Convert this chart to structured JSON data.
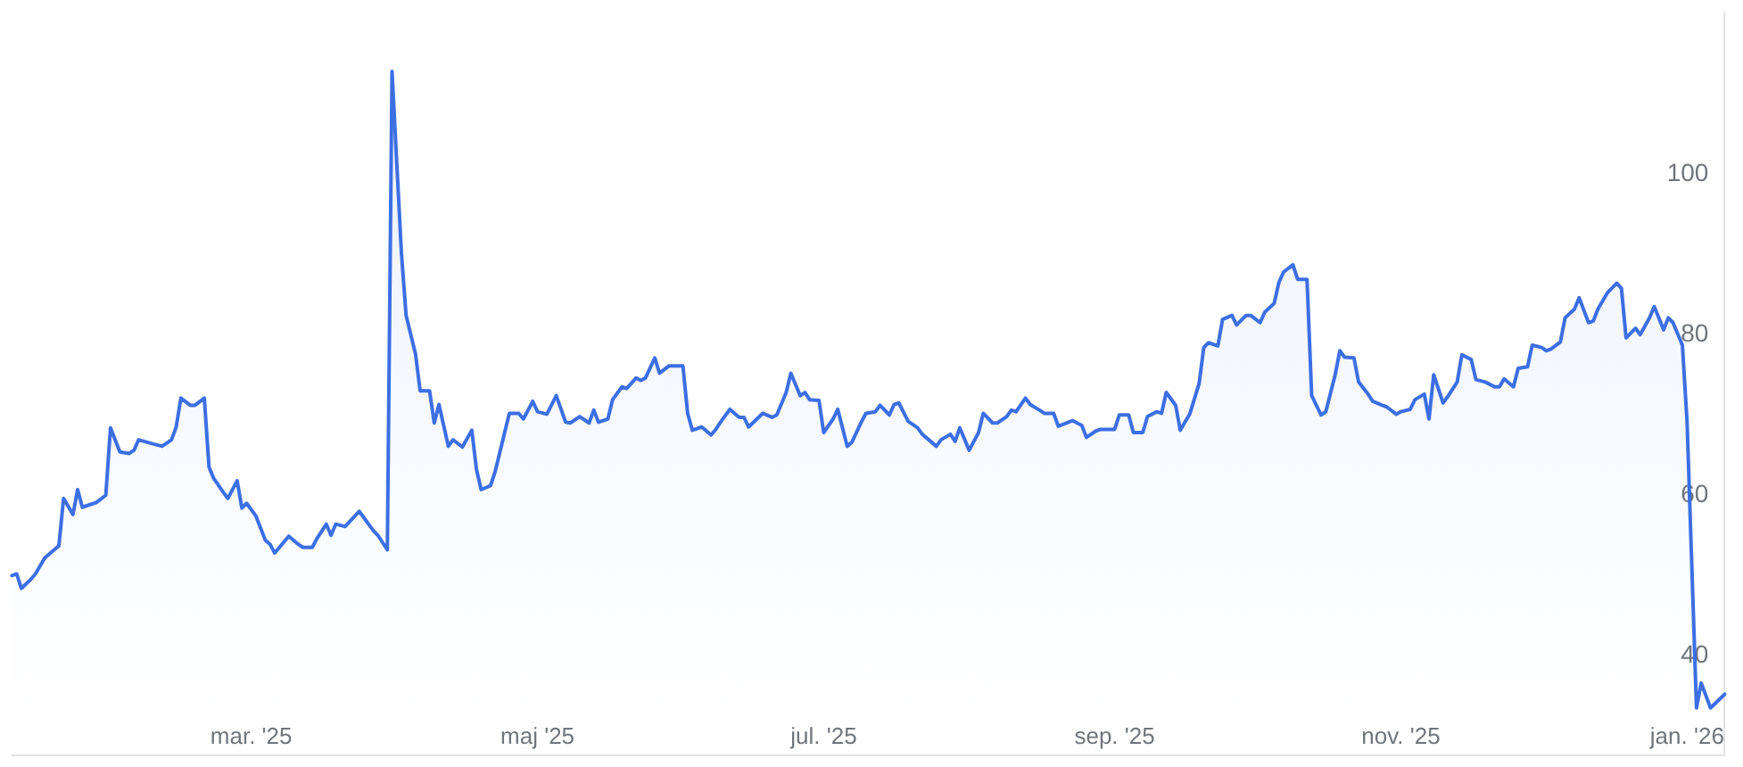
{
  "chart_data": {
    "type": "area",
    "color": "#3c6fe4",
    "x": [
      "2025-01-09",
      "2025-01-10",
      "2025-01-11",
      "2025-01-13",
      "2025-01-14",
      "2025-01-16",
      "2025-01-19",
      "2025-01-20",
      "2025-01-22",
      "2025-01-23",
      "2025-01-24",
      "2025-01-27",
      "2025-01-29",
      "2025-01-30",
      "2025-02-01",
      "2025-02-03",
      "2025-02-04",
      "2025-02-05",
      "2025-02-08",
      "2025-02-10",
      "2025-02-12",
      "2025-02-13",
      "2025-02-14",
      "2025-02-16",
      "2025-02-17",
      "2025-02-19",
      "2025-02-20",
      "2025-02-21",
      "2025-02-23",
      "2025-02-24",
      "2025-02-26",
      "2025-02-27",
      "2025-02-28",
      "2025-03-02",
      "2025-03-04",
      "2025-03-05",
      "2025-03-06",
      "2025-03-09",
      "2025-03-11",
      "2025-03-12",
      "2025-03-14",
      "2025-03-15",
      "2025-03-17",
      "2025-03-18",
      "2025-03-19",
      "2025-03-21",
      "2025-03-24",
      "2025-03-27",
      "2025-03-28",
      "2025-03-30",
      "2025-03-31",
      "2025-04-02",
      "2025-04-03",
      "2025-04-05",
      "2025-04-06",
      "2025-04-08",
      "2025-04-09",
      "2025-04-10",
      "2025-04-12",
      "2025-04-13",
      "2025-04-15",
      "2025-04-17",
      "2025-04-18",
      "2025-04-19",
      "2025-04-21",
      "2025-04-22",
      "2025-04-24",
      "2025-04-25",
      "2025-04-27",
      "2025-04-28",
      "2025-04-30",
      "2025-05-01",
      "2025-05-03",
      "2025-05-05",
      "2025-05-07",
      "2025-05-08",
      "2025-05-10",
      "2025-05-12",
      "2025-05-13",
      "2025-05-14",
      "2025-05-16",
      "2025-05-17",
      "2025-05-19",
      "2025-05-20",
      "2025-05-22",
      "2025-05-23",
      "2025-05-24",
      "2025-05-26",
      "2025-05-27",
      "2025-05-29",
      "2025-06-01",
      "2025-06-02",
      "2025-06-03",
      "2025-06-05",
      "2025-06-07",
      "2025-06-08",
      "2025-06-09",
      "2025-06-11",
      "2025-06-13",
      "2025-06-14",
      "2025-06-15",
      "2025-06-18",
      "2025-06-20",
      "2025-06-21",
      "2025-06-23",
      "2025-06-24",
      "2025-06-26",
      "2025-06-27",
      "2025-06-28",
      "2025-06-30",
      "2025-07-01",
      "2025-07-03",
      "2025-07-04",
      "2025-07-06",
      "2025-07-07",
      "2025-07-09",
      "2025-07-10",
      "2025-07-12",
      "2025-07-13",
      "2025-07-15",
      "2025-07-16",
      "2025-07-17",
      "2025-07-19",
      "2025-07-21",
      "2025-07-22",
      "2025-07-25",
      "2025-07-26",
      "2025-07-28",
      "2025-07-29",
      "2025-07-30",
      "2025-08-01",
      "2025-08-03",
      "2025-08-04",
      "2025-08-06",
      "2025-08-07",
      "2025-08-09",
      "2025-08-10",
      "2025-08-11",
      "2025-08-13",
      "2025-08-14",
      "2025-08-16",
      "2025-08-17",
      "2025-08-19",
      "2025-08-20",
      "2025-08-23",
      "2025-08-25",
      "2025-08-26",
      "2025-08-28",
      "2025-08-29",
      "2025-09-01",
      "2025-09-02",
      "2025-09-04",
      "2025-09-05",
      "2025-09-07",
      "2025-09-08",
      "2025-09-10",
      "2025-09-11",
      "2025-09-12",
      "2025-09-14",
      "2025-09-15",
      "2025-09-17",
      "2025-09-19",
      "2025-09-20",
      "2025-09-21",
      "2025-09-23",
      "2025-09-24",
      "2025-09-26",
      "2025-09-27",
      "2025-09-29",
      "2025-09-30",
      "2025-10-02",
      "2025-10-03",
      "2025-10-05",
      "2025-10-06",
      "2025-10-07",
      "2025-10-09",
      "2025-10-10",
      "2025-10-12",
      "2025-10-13",
      "2025-10-15",
      "2025-10-16",
      "2025-10-18",
      "2025-10-19",
      "2025-10-20",
      "2025-10-22",
      "2025-10-23",
      "2025-10-25",
      "2025-10-26",
      "2025-10-28",
      "2025-10-29",
      "2025-10-31",
      "2025-11-01",
      "2025-11-03",
      "2025-11-04",
      "2025-11-06",
      "2025-11-07",
      "2025-11-08",
      "2025-11-10",
      "2025-11-11",
      "2025-11-13",
      "2025-11-14",
      "2025-11-16",
      "2025-11-17",
      "2025-11-19",
      "2025-11-21",
      "2025-11-22",
      "2025-11-23",
      "2025-11-25",
      "2025-11-26",
      "2025-11-28",
      "2025-11-29",
      "2025-12-01",
      "2025-12-02",
      "2025-12-03",
      "2025-12-05",
      "2025-12-06",
      "2025-12-08",
      "2025-12-09",
      "2025-12-11",
      "2025-12-12",
      "2025-12-13",
      "2025-12-15",
      "2025-12-17",
      "2025-12-18",
      "2025-12-19",
      "2025-12-21",
      "2025-12-22",
      "2025-12-24",
      "2025-12-25",
      "2025-12-27",
      "2025-12-28",
      "2025-12-29",
      "2025-12-31",
      "2026-01-01",
      "2026-01-03",
      "2026-01-04",
      "2026-01-06",
      "2026-01-09"
    ],
    "values": [
      49.8,
      50.0,
      48.2,
      49.3,
      50.0,
      52.0,
      53.5,
      59.4,
      57.4,
      60.5,
      58.3,
      58.9,
      59.8,
      68.2,
      65.2,
      65.0,
      65.4,
      66.7,
      66.2,
      65.9,
      66.7,
      68.3,
      71.9,
      71.0,
      71.0,
      71.9,
      63.3,
      61.9,
      60.2,
      59.4,
      61.6,
      58.2,
      58.8,
      57.2,
      54.2,
      53.7,
      52.6,
      54.7,
      53.7,
      53.3,
      53.3,
      54.4,
      56.2,
      54.8,
      56.2,
      55.9,
      57.8,
      55.4,
      54.8,
      53.0,
      112.6,
      90.0,
      82.2,
      77.4,
      72.8,
      72.8,
      68.8,
      71.1,
      65.9,
      66.7,
      65.8,
      67.9,
      63.0,
      60.5,
      61.0,
      62.8,
      67.6,
      70.0,
      70.0,
      69.3,
      71.5,
      70.2,
      69.9,
      72.2,
      68.9,
      68.8,
      69.6,
      68.8,
      70.4,
      68.9,
      69.3,
      71.7,
      73.3,
      73.1,
      74.4,
      74.1,
      74.4,
      76.9,
      75.0,
      75.9,
      75.9,
      70.0,
      67.9,
      68.3,
      67.3,
      68.0,
      68.9,
      70.5,
      69.5,
      69.5,
      68.3,
      70.0,
      69.5,
      69.8,
      72.6,
      75.0,
      72.2,
      72.6,
      71.7,
      71.6,
      67.6,
      69.3,
      70.5,
      65.9,
      66.4,
      68.9,
      70.0,
      70.2,
      71.0,
      69.8,
      71.1,
      71.3,
      69.0,
      68.2,
      67.4,
      65.9,
      66.7,
      67.4,
      66.5,
      68.2,
      65.4,
      67.6,
      70.0,
      68.8,
      68.8,
      69.6,
      70.4,
      70.2,
      71.9,
      71.1,
      70.4,
      70.0,
      70.0,
      68.4,
      69.1,
      68.5,
      67.0,
      67.8,
      68.0,
      68.0,
      69.8,
      69.8,
      67.6,
      67.6,
      69.6,
      70.2,
      70.0,
      72.6,
      71.0,
      67.9,
      69.9,
      73.7,
      78.2,
      78.8,
      78.4,
      81.7,
      82.2,
      81.0,
      82.2,
      82.2,
      81.3,
      82.6,
      83.7,
      86.3,
      87.6,
      88.5,
      86.7,
      86.7,
      72.2,
      69.8,
      70.2,
      74.8,
      77.8,
      77.0,
      76.9,
      73.9,
      72.4,
      71.5,
      71.0,
      70.8,
      69.9,
      70.2,
      70.5,
      71.7,
      72.4,
      69.3,
      74.8,
      71.3,
      72.1,
      73.9,
      77.3,
      76.7,
      74.2,
      73.9,
      73.3,
      73.3,
      74.3,
      73.3,
      75.6,
      75.8,
      78.5,
      78.2,
      77.8,
      78.0,
      78.9,
      81.9,
      83.0,
      84.4,
      81.3,
      81.5,
      83.0,
      85.0,
      86.2,
      85.6,
      79.4,
      80.6,
      79.8,
      81.9,
      83.3,
      80.4,
      81.9,
      81.3,
      78.5,
      68.9,
      33.3,
      36.4,
      33.3,
      35.0
    ],
    "xlim": [
      "2025-01-09",
      "2026-01-09"
    ],
    "xticks": [
      {
        "value": "2025-03-01",
        "label": "mar. '25"
      },
      {
        "value": "2025-05-01",
        "label": "maj '25"
      },
      {
        "value": "2025-07-01",
        "label": "jul. '25"
      },
      {
        "value": "2025-09-01",
        "label": "sep. '25"
      },
      {
        "value": "2025-11-01",
        "label": "nov. '25"
      },
      {
        "value": "2026-01-01",
        "label": "jan. '26"
      }
    ],
    "ylim": [
      27.5,
      120
    ],
    "yticks": [
      40,
      60,
      80,
      100
    ]
  }
}
